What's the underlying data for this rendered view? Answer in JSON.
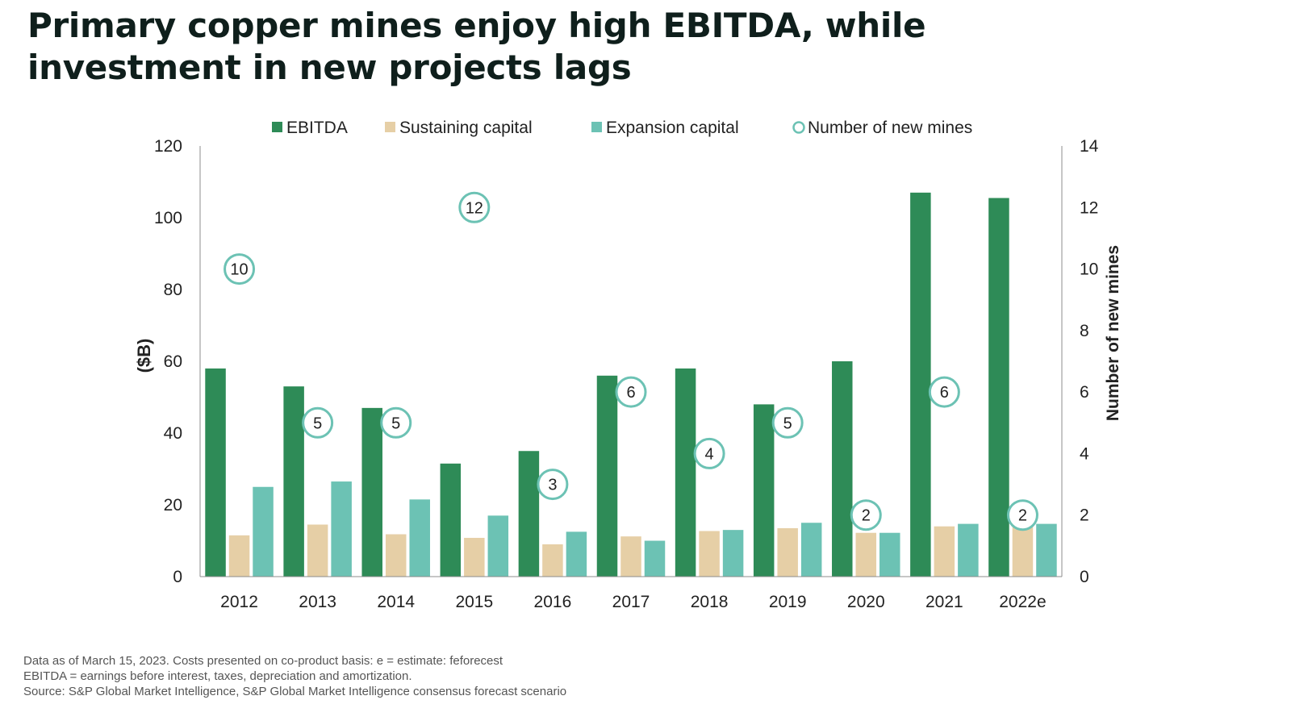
{
  "title": "Primary copper mines enjoy high EBITDA, while investment in new projects lags",
  "colors": {
    "ebitda": "#2e8b57",
    "sustaining": "#e6cfa6",
    "expansion": "#6cc2b4",
    "marker": "#6cc2b4"
  },
  "chart_data": {
    "type": "bar",
    "categories": [
      "2012",
      "2013",
      "2014",
      "2015",
      "2016",
      "2017",
      "2018",
      "2019",
      "2020",
      "2021",
      "2022e"
    ],
    "series": [
      {
        "name": "EBITDA",
        "values": [
          58,
          53,
          47,
          31.5,
          35,
          56,
          58,
          48,
          60,
          107,
          105.5
        ]
      },
      {
        "name": "Sustaining capital",
        "values": [
          11.5,
          14.5,
          11.8,
          10.8,
          9,
          11.2,
          12.7,
          13.5,
          12.2,
          14,
          15
        ]
      },
      {
        "name": "Expansion capital",
        "values": [
          25,
          26.5,
          21.5,
          17,
          12.5,
          10,
          13,
          15,
          12.2,
          14.7,
          14.7
        ]
      },
      {
        "name": "Number of new mines",
        "axis": "right",
        "type": "marker",
        "values": [
          10,
          5,
          5,
          12,
          3,
          6,
          4,
          5,
          2,
          6,
          2
        ]
      }
    ],
    "ylabel": "($B)",
    "y2label": "Number of new mines",
    "ylim": [
      0,
      120
    ],
    "y2lim": [
      0,
      14
    ],
    "yticks": [
      "0",
      "20",
      "40",
      "60",
      "80",
      "100",
      "120"
    ],
    "y2ticks": [
      "0",
      "2",
      "4",
      "6",
      "8",
      "10",
      "12",
      "14"
    ],
    "legend_position": "top"
  },
  "notes": [
    "Data as of March 15, 2023. Costs presented on co-product basis: e = estimate: feforecest",
    "EBITDA = earnings before interest, taxes, depreciation and amortization.",
    "Source: S&P Global Market Intelligence, S&P Global Market Intelligence consensus forecast scenario"
  ]
}
